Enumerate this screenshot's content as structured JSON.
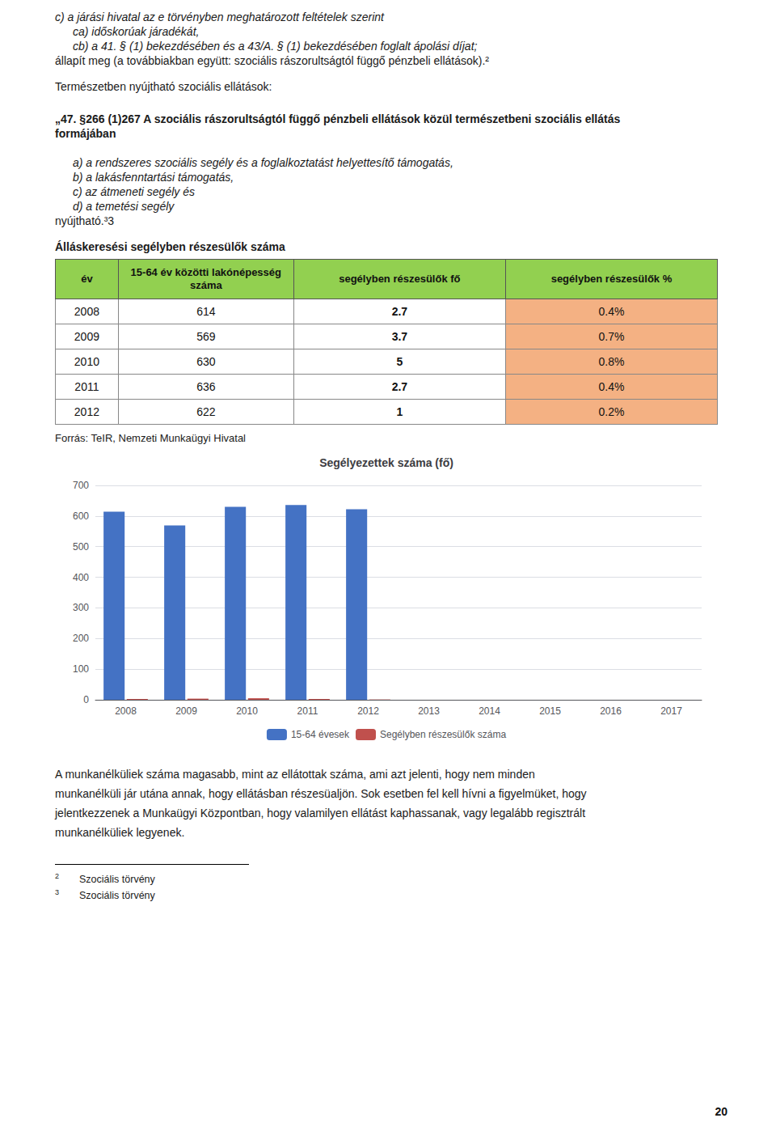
{
  "intro": [
    "c) a járási hivatal az e törvényben meghatározott feltételek szerint",
    "ca) időskorúak járadékát,",
    "cb) a 41. § (1) bekezdésében és a 43/A. § (1) bekezdésében foglalt ápolási díjat;",
    "állapít meg (a továbbiakban együtt: szociális rászorultságtól függő pénzbeli ellátások).²",
    "Természetben nyújtható szociális ellátások:"
  ],
  "bold_paragraph": [
    "„47. §266 (1)267 A szociális rászorultságtól függő pénzbeli ellátások közül természetbeni szociális ellátás",
    "formájában"
  ],
  "list": [
    "a) a rendszeres szociális segély és a foglalkoztatást helyettesítő támogatás,",
    "b) a lakásfenntartási támogatás,",
    "c) az átmeneti segély és",
    "d) a temetési segély"
  ],
  "list_end": "nyújtható.³3",
  "table_title": "Álláskeresési segélyben részesülők száma",
  "table": {
    "headers": [
      "év",
      "15-64 év közötti lakónépesség\nszáma",
      "segélyben részesülők fő",
      "segélyben részesülők %"
    ],
    "rows": [
      [
        "2008",
        "614",
        "2.7",
        "0.4%"
      ],
      [
        "2009",
        "569",
        "3.7",
        "0.7%"
      ],
      [
        "2010",
        "630",
        "5",
        "0.8%"
      ],
      [
        "2011",
        "636",
        "2.7",
        "0.4%"
      ],
      [
        "2012",
        "622",
        "1",
        "0.2%"
      ]
    ],
    "header_color": "#92d050",
    "highlight_color": "#f4b183"
  },
  "source": "Forrás: TeIR, Nemzeti Munkaügyi Hivatal",
  "chart_data": {
    "type": "bar",
    "title": "Segélyezettek száma (fő)",
    "categories": [
      "2008",
      "2009",
      "2010",
      "2011",
      "2012",
      "2013",
      "2014",
      "2015",
      "2016",
      "2017"
    ],
    "series": [
      {
        "name": "15-64 évesek",
        "color": "#4472c4",
        "values": [
          614,
          569,
          630,
          636,
          622,
          0,
          0,
          0,
          0,
          0
        ]
      },
      {
        "name": "Segélyben részesülők száma",
        "color": "#c0504d",
        "values": [
          2.7,
          3.7,
          5.0,
          2.7,
          1.0,
          0,
          0,
          0,
          0,
          0
        ]
      }
    ],
    "ylim": [
      0,
      700
    ],
    "yticks": [
      0,
      100,
      200,
      300,
      400,
      500,
      600,
      700
    ],
    "grid": true,
    "legend": "bottom"
  },
  "bottom_text": [
    "A munkanélküliek száma magasabb, mint az ellátottak száma, ami azt jelenti, hogy nem minden",
    "munkanélküli jár utána annak, hogy ellátásban részesüaljön. Sok esetben fel kell hívni a figyelmüket, hogy",
    "jelentkezzenek a Munkaügyi Központban, hogy valamilyen ellátást kaphassanak, vagy legalább regisztrált",
    "munkanélküliek legyenek."
  ],
  "footnotes": [
    {
      "mark": "2",
      "text": "Szociális törvény"
    },
    {
      "mark": "3",
      "text": "Szociális törvény"
    }
  ],
  "page_number": "20"
}
